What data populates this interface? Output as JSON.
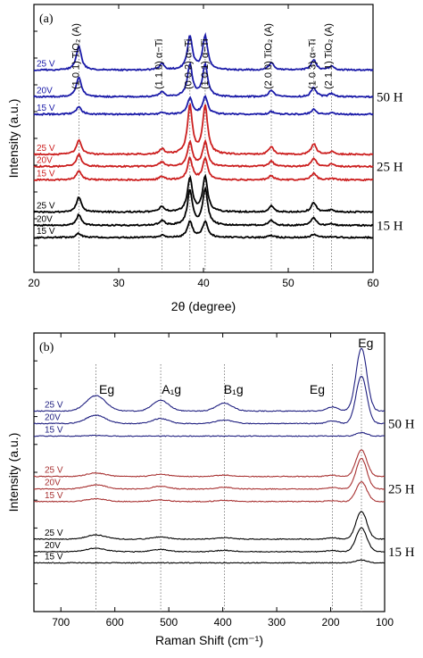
{
  "chart_data": [
    {
      "type": "line",
      "panel_label": "(a)",
      "xlabel": "2θ (degree)",
      "ylabel": "Intensity (a.u.)",
      "xlim": [
        20,
        60
      ],
      "x_ticks": [
        20,
        30,
        40,
        50,
        60
      ],
      "y_tick_labels": "none",
      "grid": false,
      "peak_positions_2theta": [
        25.3,
        35.1,
        38.4,
        40.2,
        48.0,
        53.0,
        55.1
      ],
      "peak_labels": [
        "(1 0 1) TiO₂ (A)",
        "(1 1 0) α−Ti",
        "(0 0 2) α−Ti",
        "(1 0 1) α−Ti",
        "(2 0 0) TiO₂ (A)",
        "(1 0 3) α−Ti",
        "(2 1 1) TiO₂ (A)"
      ],
      "peak_label_x": [
        25.3,
        35.1,
        38.6,
        40.5,
        48.0,
        53.2,
        55.1
      ],
      "groups": [
        {
          "duration": "50 H",
          "color": "#1a1aa8",
          "series": [
            {
              "name": "25 V",
              "baseline": 7.55,
              "peak_heights": [
                0.9,
                0.22,
                1.25,
                1.25,
                0.28,
                0.38,
                0.15
              ]
            },
            {
              "name": "20V",
              "baseline": 6.55,
              "peak_heights": [
                0.75,
                0.18,
                1.2,
                1.2,
                0.25,
                0.35,
                0.12
              ]
            },
            {
              "name": "15 V",
              "baseline": 5.9,
              "peak_heights": [
                0.3,
                0.06,
                0.6,
                0.65,
                0.1,
                0.18,
                0.05
              ]
            }
          ]
        },
        {
          "duration": "25 H",
          "color": "#cc1f1f",
          "series": [
            {
              "name": "25 V",
              "baseline": 4.4,
              "peak_heights": [
                0.55,
                0.2,
                1.8,
                1.8,
                0.28,
                0.4,
                0.1
              ]
            },
            {
              "name": "20V",
              "baseline": 3.95,
              "peak_heights": [
                0.45,
                0.16,
                0.9,
                0.9,
                0.2,
                0.3,
                0.08
              ]
            },
            {
              "name": "15 V",
              "baseline": 3.45,
              "peak_heights": [
                0.35,
                0.12,
                0.8,
                0.8,
                0.15,
                0.25,
                0.06
              ]
            }
          ]
        },
        {
          "duration": "15 H",
          "color": "#000000",
          "series": [
            {
              "name": "25 V",
              "baseline": 2.25,
              "peak_heights": [
                0.55,
                0.2,
                1.25,
                1.3,
                0.22,
                0.35,
                0.08
              ]
            },
            {
              "name": "20V",
              "baseline": 1.75,
              "peak_heights": [
                0.4,
                0.18,
                1.3,
                1.35,
                0.2,
                0.3,
                0.07
              ]
            },
            {
              "name": "15 V",
              "baseline": 1.3,
              "peak_heights": [
                0.15,
                0.08,
                0.6,
                0.6,
                0.08,
                0.12,
                0.03
              ]
            }
          ]
        }
      ]
    },
    {
      "type": "line",
      "panel_label": "(b)",
      "xlabel": "Raman Shift (cm⁻¹)",
      "ylabel": "Intensity (a.u.)",
      "xlim": [
        750,
        100
      ],
      "x_ticks": [
        700,
        600,
        500,
        400,
        300,
        200,
        100
      ],
      "x_reversed": true,
      "y_tick_labels": "none",
      "grid": false,
      "mode_positions": [
        635,
        515,
        397,
        197,
        143
      ],
      "mode_labels": [
        "Eg",
        "A₁g",
        "B₁g",
        "Eg",
        "Eg"
      ],
      "mode_label_x": [
        615,
        495,
        380,
        225,
        135
      ],
      "groups": [
        {
          "duration": "50 H",
          "color": "#1f1f80",
          "series": [
            {
              "name": "25 V",
              "baseline": 7.2,
              "peak_heights": [
                0.55,
                0.38,
                0.28,
                0.15,
                2.25
              ]
            },
            {
              "name": "20V",
              "baseline": 6.75,
              "peak_heights": [
                0.3,
                0.18,
                0.13,
                0.1,
                1.7
              ]
            },
            {
              "name": "15 V",
              "baseline": 6.3,
              "peak_heights": [
                0.02,
                0.0,
                0.0,
                0.0,
                0.12
              ]
            }
          ]
        },
        {
          "duration": "25 H",
          "color": "#a83232",
          "series": [
            {
              "name": "25 V",
              "baseline": 4.85,
              "peak_heights": [
                0.12,
                0.08,
                0.05,
                0.04,
                0.95
              ]
            },
            {
              "name": "20V",
              "baseline": 4.4,
              "peak_heights": [
                0.15,
                0.1,
                0.06,
                0.05,
                1.1
              ]
            },
            {
              "name": "15 V",
              "baseline": 3.95,
              "peak_heights": [
                0.1,
                0.06,
                0.04,
                0.03,
                0.7
              ]
            }
          ]
        },
        {
          "duration": "15 H",
          "color": "#000000",
          "series": [
            {
              "name": "25 V",
              "baseline": 2.6,
              "peak_heights": [
                0.15,
                0.08,
                0.05,
                0.05,
                1.0
              ]
            },
            {
              "name": "20V",
              "baseline": 2.15,
              "peak_heights": [
                0.12,
                0.08,
                0.05,
                0.04,
                0.85
              ]
            },
            {
              "name": "15 V",
              "baseline": 1.75,
              "peak_heights": [
                0.0,
                0.0,
                0.0,
                0.0,
                0.1
              ]
            }
          ]
        }
      ]
    }
  ]
}
